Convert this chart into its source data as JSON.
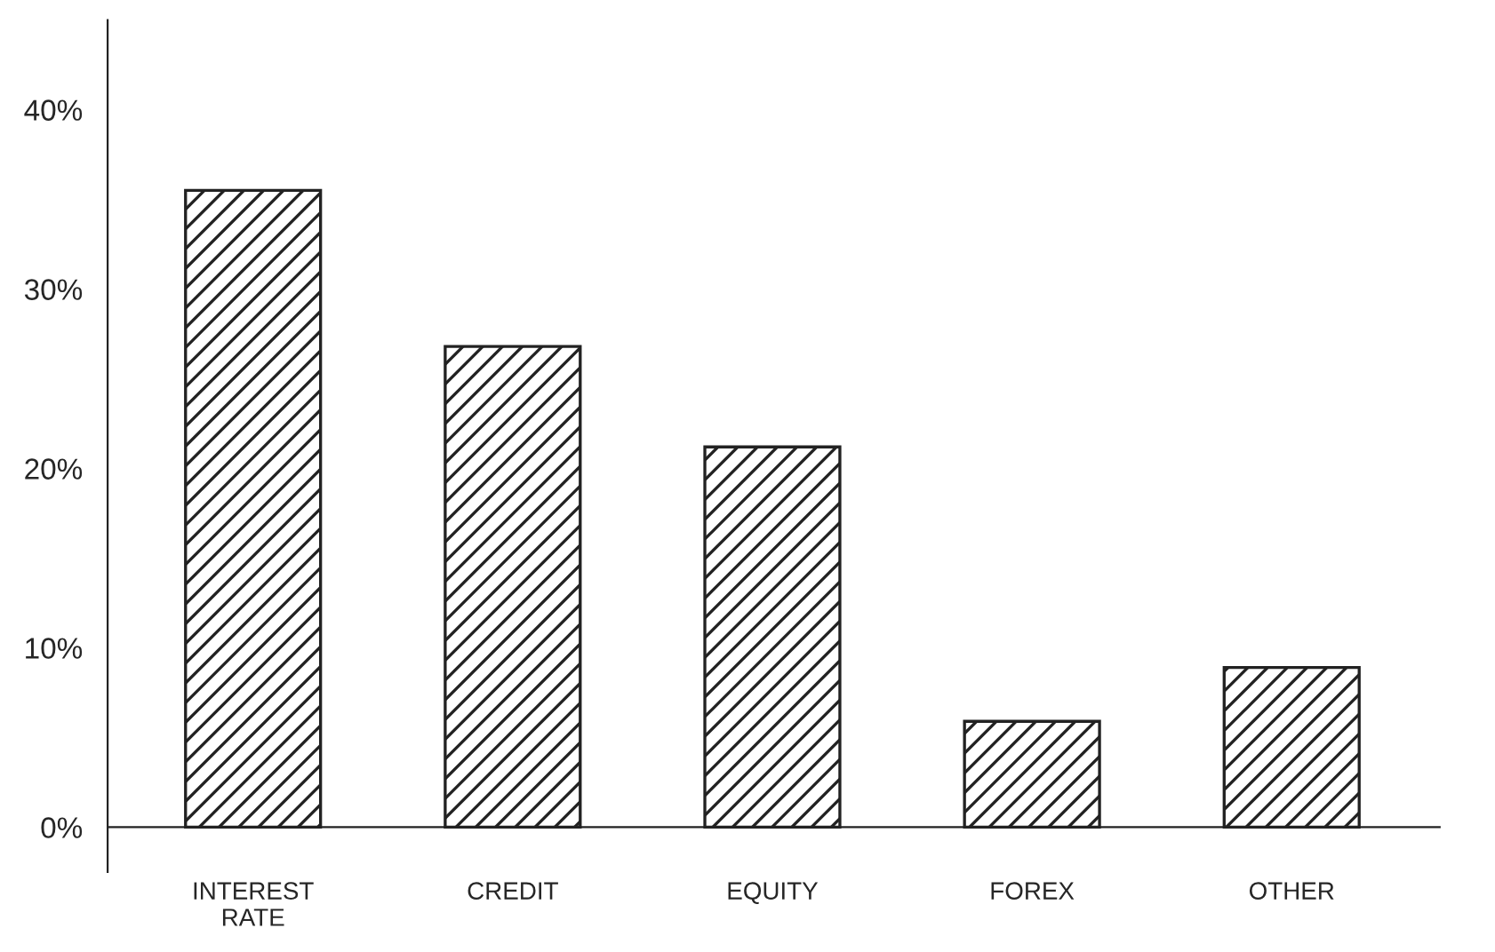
{
  "chart_data": {
    "type": "bar",
    "categories": [
      "INTEREST\nRATE",
      "CREDIT",
      "EQUITY",
      "FOREX",
      "OTHER"
    ],
    "values": [
      35.5,
      26.8,
      21.2,
      5.9,
      8.9
    ],
    "color": "#222222",
    "ylim": [
      -2.5,
      45
    ],
    "yticks": [
      {
        "value": 0,
        "label": "0%"
      },
      {
        "value": 10,
        "label": "10%"
      },
      {
        "value": 20,
        "label": "20%"
      },
      {
        "value": 30,
        "label": "30%"
      },
      {
        "value": 40,
        "label": "40%"
      }
    ],
    "grid": false,
    "legend": false
  }
}
